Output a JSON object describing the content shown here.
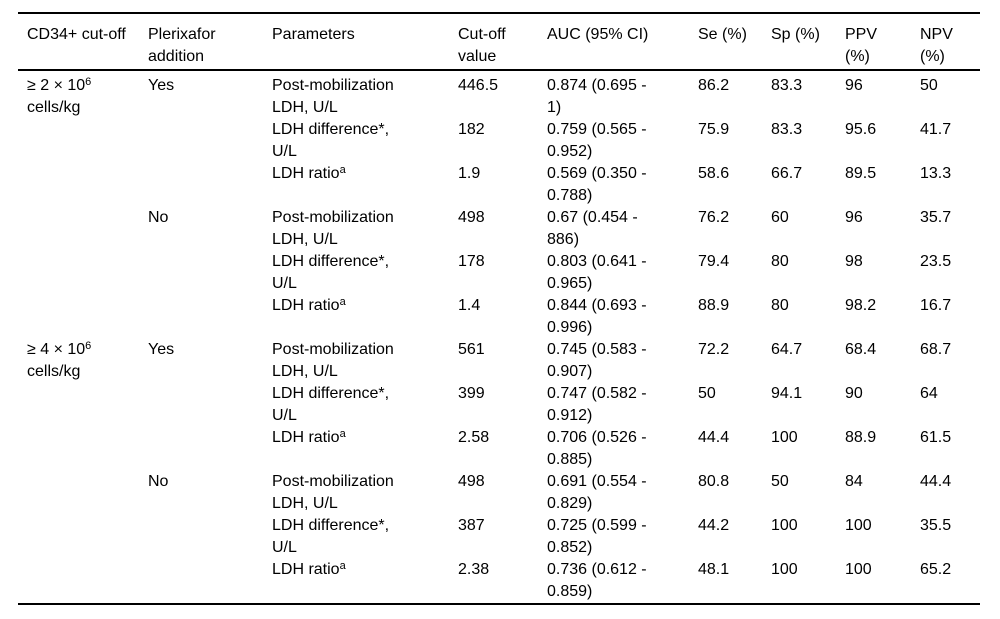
{
  "table": {
    "columns": [
      "CD34+ cut-off",
      "Plerixafor\naddition",
      "Parameters",
      "Cut-off\nvalue",
      "AUC (95% CI)",
      "Se (%)",
      "Sp (%)",
      "PPV\n(%)",
      "NPV\n(%)"
    ],
    "rows": [
      {
        "cd34": {
          "pre": "≥ 2 × 10",
          "sup": "6",
          "line2": "cells/kg"
        },
        "plerixafor": "Yes",
        "param": {
          "text": "Post-mobilization\nLDH, U/L"
        },
        "cutoff": "446.5",
        "auc": "0.874 (0.695 -\n1)",
        "se": "86.2",
        "sp": "83.3",
        "ppv": "96",
        "npv": "50"
      },
      {
        "param": {
          "text": "LDH difference*,\nU/L"
        },
        "cutoff": "182",
        "auc": "0.759 (0.565 -\n0.952)",
        "se": "75.9",
        "sp": "83.3",
        "ppv": "95.6",
        "npv": "41.7"
      },
      {
        "param": {
          "text": "LDH ratio",
          "sup": "a"
        },
        "cutoff": "1.9",
        "auc": "0.569 (0.350 -\n0.788)",
        "se": "58.6",
        "sp": "66.7",
        "ppv": "89.5",
        "npv": "13.3"
      },
      {
        "plerixafor": "No",
        "param": {
          "text": "Post-mobilization\nLDH, U/L"
        },
        "cutoff": "498",
        "auc": "0.67 (0.454 -\n886)",
        "se": "76.2",
        "sp": "60",
        "ppv": "96",
        "npv": "35.7"
      },
      {
        "param": {
          "text": "LDH difference*,\nU/L"
        },
        "cutoff": "178",
        "auc": "0.803 (0.641 -\n0.965)",
        "se": "79.4",
        "sp": "80",
        "ppv": "98",
        "npv": "23.5"
      },
      {
        "param": {
          "text": "LDH ratio",
          "sup": "a"
        },
        "cutoff": "1.4",
        "auc": "0.844 (0.693 -\n0.996)",
        "se": "88.9",
        "sp": "80",
        "ppv": "98.2",
        "npv": "16.7"
      },
      {
        "cd34": {
          "pre": "≥ 4 × 10",
          "sup": "6",
          "line2": "cells/kg"
        },
        "plerixafor": "Yes",
        "param": {
          "text": "Post-mobilization\nLDH, U/L"
        },
        "cutoff": "561",
        "auc": "0.745 (0.583 -\n0.907)",
        "se": "72.2",
        "sp": "64.7",
        "ppv": "68.4",
        "npv": "68.7"
      },
      {
        "param": {
          "text": "LDH difference*,\nU/L"
        },
        "cutoff": "399",
        "auc": "0.747 (0.582 -\n0.912)",
        "se": "50",
        "sp": "94.1",
        "ppv": "90",
        "npv": "64"
      },
      {
        "param": {
          "text": "LDH ratio",
          "sup": "a"
        },
        "cutoff": "2.58",
        "auc": "0.706 (0.526 -\n0.885)",
        "se": "44.4",
        "sp": "100",
        "ppv": "88.9",
        "npv": "61.5"
      },
      {
        "plerixafor": "No",
        "param": {
          "text": "Post-mobilization\nLDH, U/L"
        },
        "cutoff": "498",
        "auc": "0.691 (0.554 -\n0.829)",
        "se": "80.8",
        "sp": "50",
        "ppv": "84",
        "npv": "44.4"
      },
      {
        "param": {
          "text": "LDH difference*,\nU/L"
        },
        "cutoff": "387",
        "auc": "0.725 (0.599 -\n0.852)",
        "se": "44.2",
        "sp": "100",
        "ppv": "100",
        "npv": "35.5"
      },
      {
        "param": {
          "text": "LDH ratio",
          "sup": "a"
        },
        "cutoff": "2.38",
        "auc": "0.736 (0.612 -\n0.859)",
        "se": "48.1",
        "sp": "100",
        "ppv": "100",
        "npv": "65.2"
      }
    ]
  }
}
